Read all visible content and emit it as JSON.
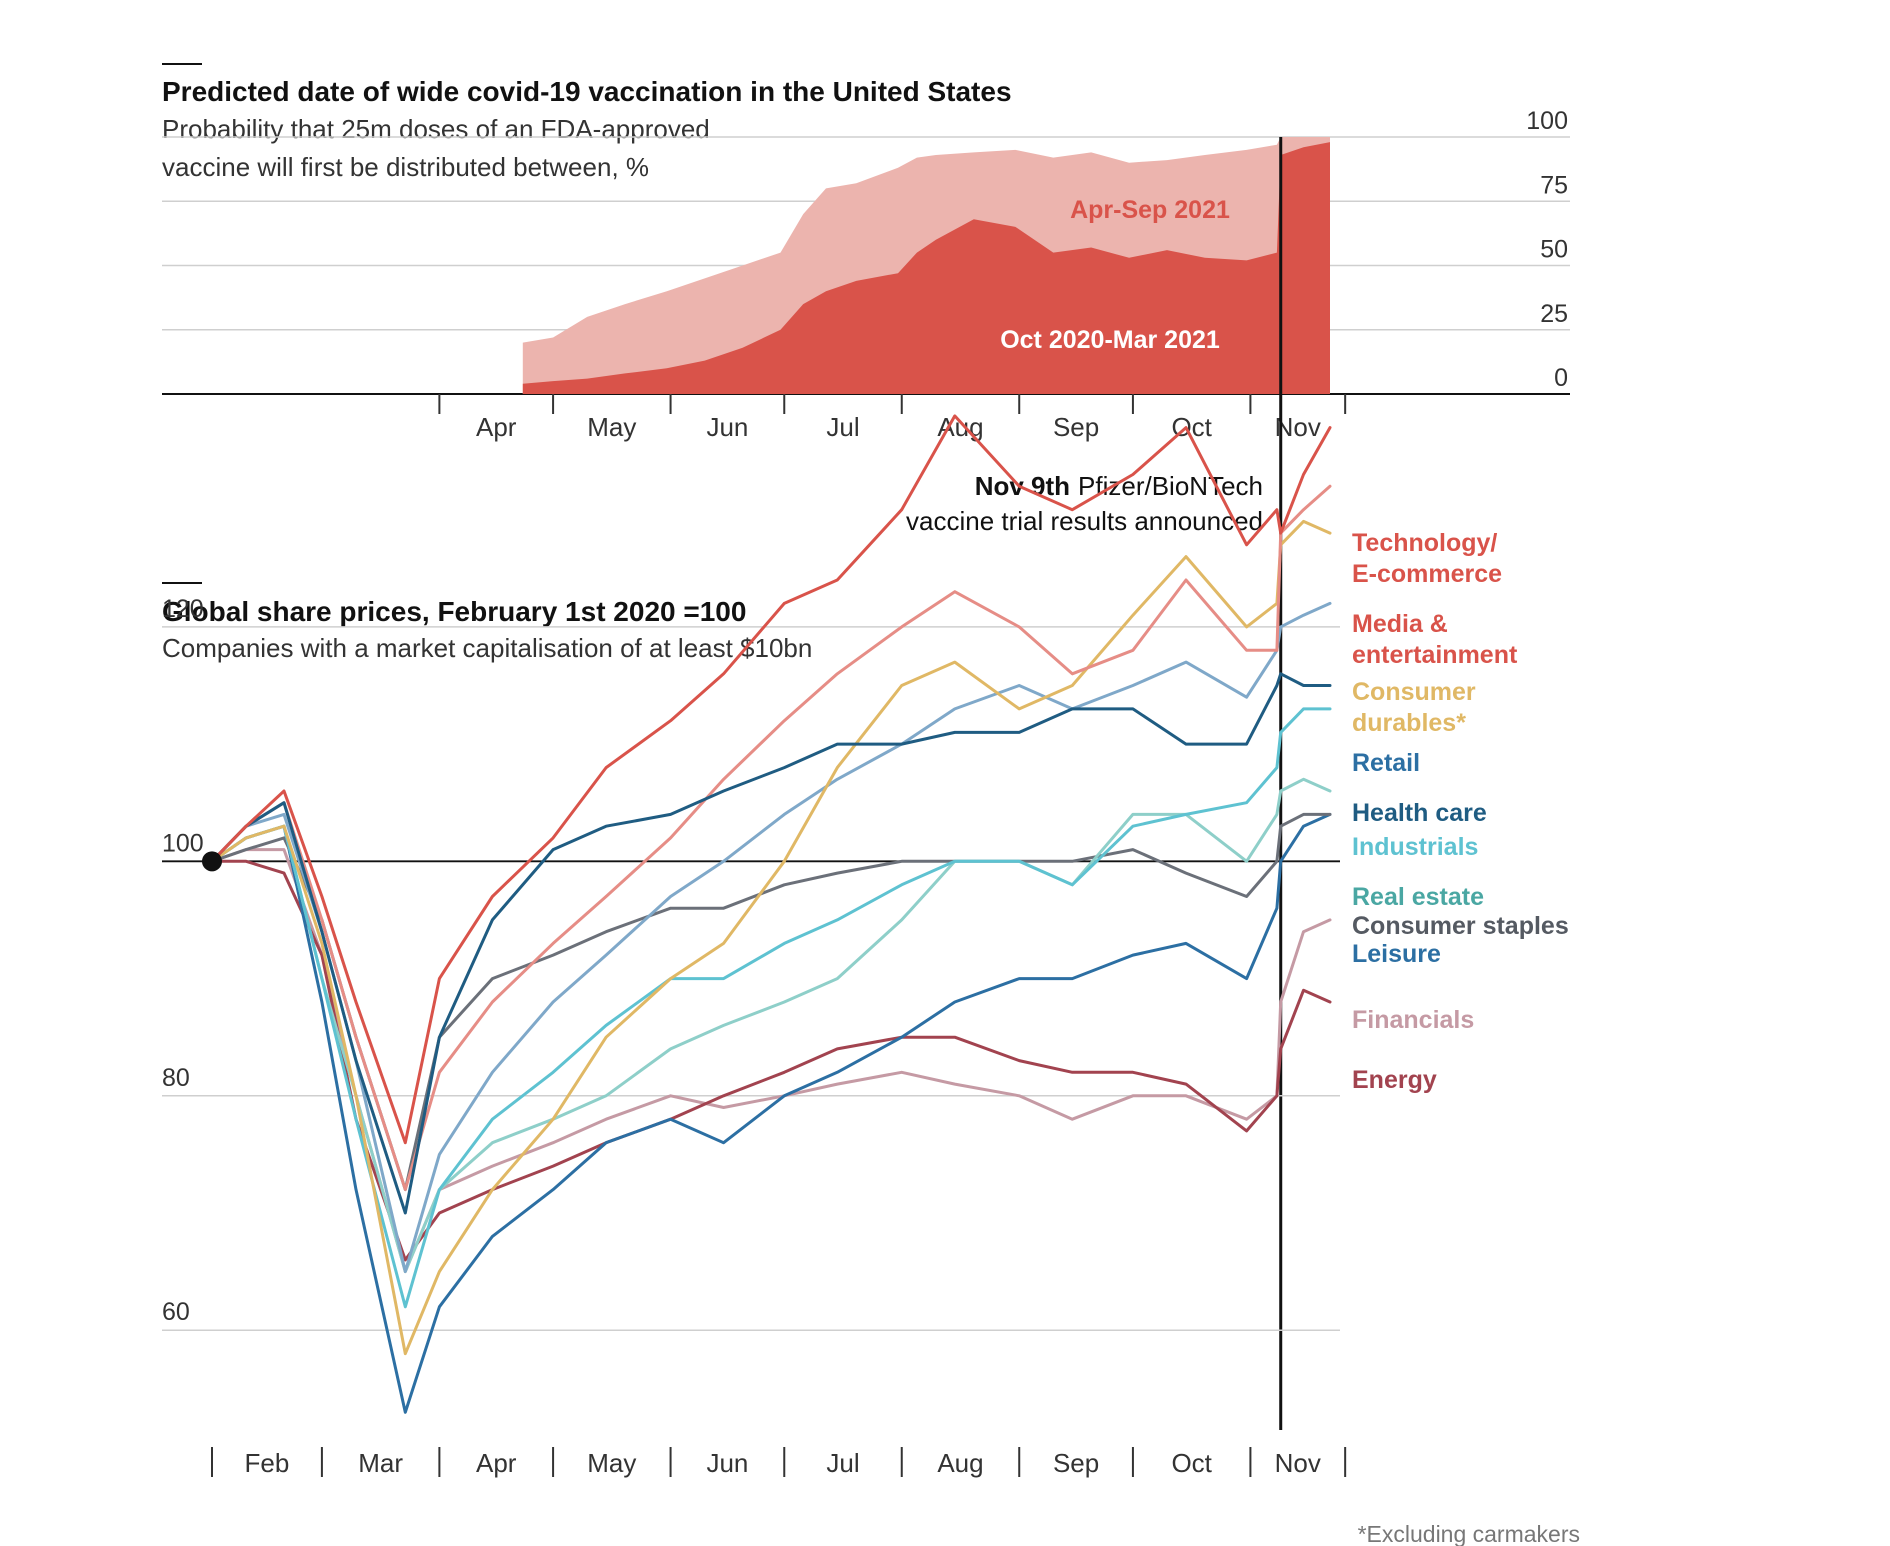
{
  "chart_data": [
    {
      "type": "area",
      "title": "Predicted date of wide covid-19 vaccination in the United States",
      "subtitle": [
        "Probability that 25m doses of an FDA-approved",
        "vaccine will first be distributed between, %"
      ],
      "xlabel": "",
      "ylabel": "",
      "ylim": [
        0,
        100
      ],
      "yticks": [
        "0",
        "25",
        "50",
        "75",
        "100"
      ],
      "month_labels": [
        "Apr",
        "May",
        "Jun",
        "Jul",
        "Aug",
        "Sep",
        "Oct",
        "Nov"
      ],
      "grid": true,
      "x": [
        "2020-04-23",
        "2020-05-01",
        "2020-05-10",
        "2020-05-20",
        "2020-05-31",
        "2020-06-10",
        "2020-06-20",
        "2020-06-30",
        "2020-07-06",
        "2020-07-12",
        "2020-07-20",
        "2020-07-31",
        "2020-08-05",
        "2020-08-10",
        "2020-08-20",
        "2020-08-31",
        "2020-09-10",
        "2020-09-20",
        "2020-09-30",
        "2020-10-10",
        "2020-10-20",
        "2020-10-31",
        "2020-11-08",
        "2020-11-09",
        "2020-11-15",
        "2020-11-22"
      ],
      "series": [
        {
          "name": "Oct 2020-Mar 2021",
          "color": "#d9534a",
          "values": [
            4,
            5,
            6,
            8,
            10,
            13,
            18,
            25,
            35,
            40,
            44,
            47,
            55,
            60,
            68,
            65,
            55,
            57,
            53,
            56,
            53,
            52,
            55,
            93,
            96,
            98
          ]
        },
        {
          "name": "Apr-Sep 2021",
          "color": "#ecb4ae",
          "values": [
            20,
            22,
            30,
            35,
            40,
            45,
            50,
            55,
            70,
            80,
            82,
            88,
            92,
            93,
            94,
            95,
            92,
            94,
            90,
            91,
            93,
            95,
            97,
            100,
            100,
            100
          ]
        }
      ],
      "band_labels": [
        "Apr-Sep 2021",
        "Oct 2020-Mar 2021"
      ]
    },
    {
      "type": "line",
      "title": "Global share prices, February 1st 2020 =100",
      "subtitle": "Companies with a market capitalisation of at least $10bn",
      "xlabel": "",
      "ylabel": "",
      "ylim": [
        52,
        124
      ],
      "yticks": [
        "60",
        "80",
        "100",
        "120"
      ],
      "month_labels": [
        "Feb",
        "Mar",
        "Apr",
        "May",
        "Jun",
        "Jul",
        "Aug",
        "Sep",
        "Oct",
        "Nov"
      ],
      "grid": true,
      "x": [
        "2020-02-01",
        "2020-02-10",
        "2020-02-20",
        "2020-03-01",
        "2020-03-10",
        "2020-03-23",
        "2020-04-01",
        "2020-04-15",
        "2020-05-01",
        "2020-05-15",
        "2020-06-01",
        "2020-06-15",
        "2020-07-01",
        "2020-07-15",
        "2020-08-01",
        "2020-08-15",
        "2020-09-01",
        "2020-09-15",
        "2020-10-01",
        "2020-10-15",
        "2020-10-31",
        "2020-11-08",
        "2020-11-09",
        "2020-11-15",
        "2020-11-22"
      ],
      "series": [
        {
          "name": "Technology/ E-commerce",
          "color": "#d9534a",
          "values": [
            100,
            103,
            106,
            97,
            88,
            76,
            90,
            97,
            102,
            108,
            112,
            116,
            122,
            124,
            130,
            138,
            132,
            130,
            133,
            137,
            127,
            130,
            128,
            133,
            137
          ]
        },
        {
          "name": "Media & entertainment",
          "color": "#e68d86",
          "values": [
            100,
            103,
            105,
            95,
            85,
            72,
            82,
            88,
            93,
            97,
            102,
            107,
            112,
            116,
            120,
            123,
            120,
            116,
            118,
            124,
            118,
            118,
            128,
            130,
            132
          ]
        },
        {
          "name": "Consumer durables*",
          "color": "#e0b865",
          "values": [
            100,
            102,
            103,
            93,
            80,
            58,
            65,
            72,
            78,
            85,
            90,
            93,
            100,
            108,
            115,
            117,
            113,
            115,
            121,
            126,
            120,
            122,
            127,
            129,
            128
          ]
        },
        {
          "name": "Retail",
          "color": "#7fa8c9",
          "values": [
            100,
            103,
            104,
            94,
            83,
            65,
            75,
            82,
            88,
            92,
            97,
            100,
            104,
            107,
            110,
            113,
            115,
            113,
            115,
            117,
            114,
            118,
            120,
            121,
            122
          ]
        },
        {
          "name": "Health care",
          "color": "#1f5c82",
          "values": [
            100,
            103,
            105,
            94,
            83,
            70,
            85,
            95,
            101,
            103,
            104,
            106,
            108,
            110,
            110,
            111,
            111,
            113,
            113,
            110,
            110,
            115,
            116,
            115,
            115
          ]
        },
        {
          "name": "Industrials",
          "color": "#5ec2d1",
          "values": [
            100,
            102,
            103,
            90,
            78,
            62,
            72,
            78,
            82,
            86,
            90,
            90,
            93,
            95,
            98,
            100,
            100,
            98,
            103,
            104,
            105,
            108,
            111,
            113,
            113
          ]
        },
        {
          "name": "Real estate",
          "color": "#8ecfc9",
          "values": [
            100,
            102,
            103,
            90,
            80,
            65,
            72,
            76,
            78,
            80,
            84,
            86,
            88,
            90,
            95,
            100,
            100,
            98,
            104,
            104,
            100,
            104,
            106,
            107,
            106
          ]
        },
        {
          "name": "Consumer staples",
          "color": "#6b7079",
          "values": [
            100,
            101,
            102,
            95,
            85,
            72,
            85,
            90,
            92,
            94,
            96,
            96,
            98,
            99,
            100,
            100,
            100,
            100,
            101,
            99,
            97,
            100,
            103,
            104,
            104
          ]
        },
        {
          "name": "Leisure",
          "color": "#2c6fa3",
          "values": [
            100,
            102,
            103,
            88,
            72,
            53,
            62,
            68,
            72,
            76,
            78,
            76,
            80,
            82,
            85,
            88,
            90,
            90,
            92,
            93,
            90,
            96,
            100,
            103,
            104
          ]
        },
        {
          "name": "Financials",
          "color": "#c59aa4",
          "values": [
            100,
            101,
            101,
            92,
            80,
            65,
            72,
            74,
            76,
            78,
            80,
            79,
            80,
            81,
            82,
            81,
            80,
            78,
            80,
            80,
            78,
            80,
            88,
            94,
            95
          ]
        },
        {
          "name": "Energy",
          "color": "#a2434f",
          "values": [
            100,
            100,
            99,
            92,
            78,
            66,
            70,
            72,
            74,
            76,
            78,
            80,
            82,
            84,
            85,
            85,
            83,
            82,
            82,
            81,
            77,
            80,
            84,
            89,
            88
          ]
        }
      ],
      "legend_placement": "right",
      "legend_entries": [
        {
          "text": "Technology/",
          "color": "#d9534a"
        },
        {
          "text": "E-commerce",
          "color": "#d9534a"
        },
        {
          "text": "Media &",
          "color": "#d9534a"
        },
        {
          "text": "entertainment",
          "color": "#d9534a"
        },
        {
          "text": "Consumer",
          "color": "#e0b865"
        },
        {
          "text": "durables*",
          "color": "#e0b865"
        },
        {
          "text": "Retail",
          "color": "#2c6fa3"
        },
        {
          "text": "Health care",
          "color": "#1f5c82"
        },
        {
          "text": "Industrials",
          "color": "#5ec2d1"
        },
        {
          "text": "Real estate",
          "color": "#4aa7a3"
        },
        {
          "text": "Consumer staples",
          "color": "#555a62"
        },
        {
          "text": "Leisure",
          "color": "#2c6fa3"
        },
        {
          "text": "Financials",
          "color": "#c59aa4"
        },
        {
          "text": "Energy",
          "color": "#a2434f"
        }
      ]
    }
  ],
  "annotation": {
    "date": "2020-11-09",
    "bold": "Nov 9th",
    "text1": "Pfizer/BioNTech",
    "text2": "vaccine trial results announced"
  },
  "footnote": "*Excluding carmakers"
}
